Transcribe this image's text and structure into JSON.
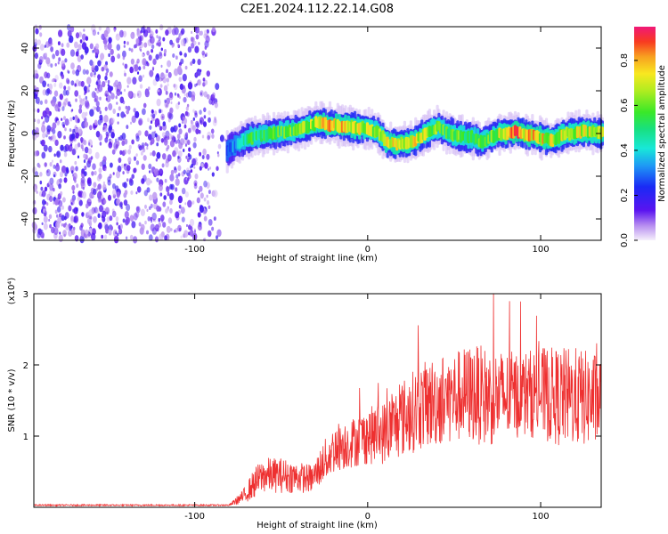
{
  "title": "C2E1.2024.112.22.14.G08",
  "chart_data": [
    {
      "type": "heatmap",
      "xlabel": "Height of straight line (km)",
      "ylabel": "Frequency (Hz)",
      "xlim": [
        -193,
        135
      ],
      "ylim": [
        -50,
        50
      ],
      "xticks": [
        -100,
        0,
        100
      ],
      "yticks": [
        -40,
        -20,
        0,
        20,
        40
      ],
      "colorbar": {
        "label": "Normalized spectral amplitude",
        "range": [
          0.0,
          0.95
        ],
        "ticks": [
          0.0,
          0.2,
          0.4,
          0.6,
          0.8
        ]
      },
      "noise_region_x": [
        -193,
        -82
      ],
      "ridge": {
        "x": [
          -82,
          -70,
          -55,
          -40,
          -30,
          -20,
          -10,
          0,
          5,
          10,
          15,
          25,
          35,
          40,
          50,
          60,
          65,
          75,
          85,
          95,
          105,
          115,
          125,
          135
        ],
        "frequency": [
          -8,
          -2,
          0,
          2,
          5,
          4,
          3,
          2,
          1,
          -4,
          -5,
          -4,
          1,
          3,
          -1,
          -2,
          -4,
          0,
          1,
          -1,
          -3,
          0,
          1,
          0
        ],
        "peak_amplitude": [
          0.25,
          0.55,
          0.6,
          0.65,
          0.75,
          0.8,
          0.75,
          0.7,
          0.6,
          0.75,
          0.8,
          0.75,
          0.7,
          0.6,
          0.65,
          0.6,
          0.6,
          0.7,
          0.85,
          0.8,
          0.75,
          0.7,
          0.75,
          0.7
        ]
      }
    },
    {
      "type": "line",
      "xlabel": "Height of straight line (km)",
      "ylabel": "SNR (10 * v/v)",
      "yscale_label": "(x10⁴)",
      "xlim": [
        -193,
        135
      ],
      "ylim": [
        0,
        3
      ],
      "xticks": [
        -100,
        0,
        100
      ],
      "yticks": [
        1,
        2,
        3
      ],
      "color": "#ee3030",
      "series": [
        {
          "x": [
            -193,
            -80,
            -72,
            -65,
            -60,
            -50,
            -40,
            -32,
            -25,
            -18,
            -10,
            0,
            10,
            20,
            30,
            40,
            50,
            60,
            70,
            80,
            90,
            100,
            110,
            120,
            135
          ],
          "baseline": [
            0.03,
            0.03,
            0.15,
            0.35,
            0.45,
            0.45,
            0.42,
            0.4,
            0.65,
            0.85,
            0.9,
            1.0,
            1.05,
            1.25,
            1.4,
            1.5,
            1.55,
            1.6,
            1.55,
            1.55,
            1.6,
            1.6,
            1.55,
            1.55,
            1.5
          ],
          "spread": [
            0.01,
            0.01,
            0.1,
            0.22,
            0.25,
            0.25,
            0.22,
            0.2,
            0.3,
            0.35,
            0.35,
            0.4,
            0.45,
            0.55,
            0.6,
            0.65,
            0.65,
            0.7,
            0.7,
            0.65,
            0.6,
            0.65,
            0.7,
            0.7,
            0.65
          ]
        }
      ]
    }
  ]
}
